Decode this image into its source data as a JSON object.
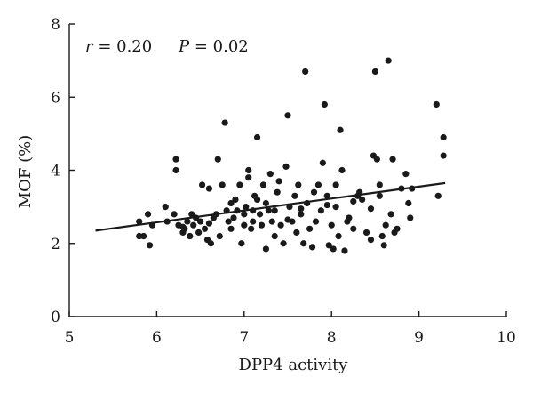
{
  "chart_data": {
    "type": "scatter",
    "xlabel": "DPP4 activity",
    "ylabel": "MOF (%)",
    "xlim": [
      5,
      10
    ],
    "ylim": [
      0,
      8
    ],
    "xticks": [
      5,
      6,
      7,
      8,
      9,
      10
    ],
    "yticks": [
      0,
      2,
      4,
      6,
      8
    ],
    "grid": false,
    "annotations": {
      "r_symbol": "r",
      "r_value": " = 0.20",
      "p_symbol": "P",
      "p_value": " = 0.02"
    },
    "trend_line": {
      "x": [
        5.3,
        9.3
      ],
      "y": [
        2.35,
        3.65
      ]
    },
    "points": [
      [
        5.8,
        2.6
      ],
      [
        5.8,
        2.2
      ],
      [
        5.85,
        2.2
      ],
      [
        5.9,
        2.8
      ],
      [
        5.92,
        1.95
      ],
      [
        5.95,
        2.5
      ],
      [
        6.1,
        3.0
      ],
      [
        6.12,
        2.6
      ],
      [
        6.2,
        2.8
      ],
      [
        6.22,
        4.3
      ],
      [
        6.22,
        4.0
      ],
      [
        6.25,
        2.5
      ],
      [
        6.3,
        2.3
      ],
      [
        6.32,
        2.4
      ],
      [
        6.35,
        2.6
      ],
      [
        6.38,
        2.2
      ],
      [
        6.4,
        2.8
      ],
      [
        6.42,
        2.5
      ],
      [
        6.45,
        2.7
      ],
      [
        6.48,
        2.3
      ],
      [
        6.5,
        2.6
      ],
      [
        6.52,
        3.6
      ],
      [
        6.55,
        2.4
      ],
      [
        6.58,
        2.1
      ],
      [
        6.6,
        3.5
      ],
      [
        6.62,
        2.0
      ],
      [
        6.65,
        2.7
      ],
      [
        6.68,
        2.8
      ],
      [
        6.7,
        4.3
      ],
      [
        6.72,
        2.2
      ],
      [
        6.75,
        3.6
      ],
      [
        6.78,
        5.3
      ],
      [
        6.8,
        2.9
      ],
      [
        6.82,
        2.6
      ],
      [
        6.85,
        2.4
      ],
      [
        6.88,
        2.7
      ],
      [
        6.9,
        3.2
      ],
      [
        6.92,
        2.9
      ],
      [
        6.95,
        3.6
      ],
      [
        6.97,
        2.0
      ],
      [
        7.0,
        2.5
      ],
      [
        7.02,
        3.0
      ],
      [
        7.05,
        3.8
      ],
      [
        7.05,
        4.0
      ],
      [
        7.08,
        2.4
      ],
      [
        7.1,
        2.9
      ],
      [
        7.1,
        2.6
      ],
      [
        7.12,
        3.3
      ],
      [
        7.15,
        4.9
      ],
      [
        7.15,
        3.2
      ],
      [
        7.18,
        2.8
      ],
      [
        7.2,
        2.5
      ],
      [
        7.22,
        3.6
      ],
      [
        7.25,
        3.1
      ],
      [
        7.25,
        1.85
      ],
      [
        7.28,
        2.9
      ],
      [
        7.3,
        3.9
      ],
      [
        7.32,
        2.6
      ],
      [
        7.35,
        2.2
      ],
      [
        7.38,
        3.4
      ],
      [
        7.4,
        3.7
      ],
      [
        7.42,
        2.5
      ],
      [
        7.45,
        2.0
      ],
      [
        7.48,
        4.1
      ],
      [
        7.5,
        5.5
      ],
      [
        7.52,
        3.0
      ],
      [
        7.55,
        2.6
      ],
      [
        7.58,
        3.3
      ],
      [
        7.6,
        2.3
      ],
      [
        7.62,
        3.6
      ],
      [
        7.65,
        2.8
      ],
      [
        7.68,
        2.0
      ],
      [
        7.7,
        6.7
      ],
      [
        7.72,
        3.1
      ],
      [
        7.75,
        2.4
      ],
      [
        7.78,
        1.9
      ],
      [
        7.8,
        3.4
      ],
      [
        7.82,
        2.6
      ],
      [
        7.85,
        3.6
      ],
      [
        7.88,
        2.9
      ],
      [
        7.9,
        4.2
      ],
      [
        7.92,
        5.8
      ],
      [
        7.95,
        3.3
      ],
      [
        7.97,
        1.95
      ],
      [
        8.0,
        2.5
      ],
      [
        8.02,
        1.85
      ],
      [
        8.05,
        3.0
      ],
      [
        8.08,
        2.2
      ],
      [
        8.1,
        5.1
      ],
      [
        8.12,
        4.0
      ],
      [
        8.15,
        1.8
      ],
      [
        8.18,
        2.6
      ],
      [
        8.2,
        2.7
      ],
      [
        8.25,
        2.4
      ],
      [
        8.3,
        3.3
      ],
      [
        8.32,
        3.4
      ],
      [
        8.35,
        3.2
      ],
      [
        8.4,
        2.3
      ],
      [
        8.45,
        2.1
      ],
      [
        8.48,
        4.4
      ],
      [
        8.5,
        6.7
      ],
      [
        8.52,
        4.3
      ],
      [
        8.55,
        3.6
      ],
      [
        8.58,
        2.2
      ],
      [
        8.6,
        1.95
      ],
      [
        8.62,
        2.5
      ],
      [
        8.65,
        7.0
      ],
      [
        8.68,
        2.8
      ],
      [
        8.7,
        4.3
      ],
      [
        8.72,
        2.3
      ],
      [
        8.75,
        2.4
      ],
      [
        8.8,
        3.5
      ],
      [
        8.85,
        3.9
      ],
      [
        8.88,
        3.1
      ],
      [
        8.9,
        2.7
      ],
      [
        8.92,
        3.5
      ],
      [
        9.2,
        5.8
      ],
      [
        9.22,
        3.3
      ],
      [
        9.28,
        4.9
      ],
      [
        9.28,
        4.4
      ],
      [
        6.3,
        2.45
      ],
      [
        6.6,
        2.55
      ],
      [
        7.0,
        2.8
      ],
      [
        7.35,
        2.9
      ],
      [
        7.65,
        2.95
      ],
      [
        7.95,
        3.05
      ],
      [
        8.25,
        3.15
      ],
      [
        8.55,
        3.3
      ],
      [
        6.85,
        3.1
      ],
      [
        7.5,
        2.65
      ],
      [
        8.05,
        3.6
      ],
      [
        8.45,
        2.95
      ]
    ]
  }
}
